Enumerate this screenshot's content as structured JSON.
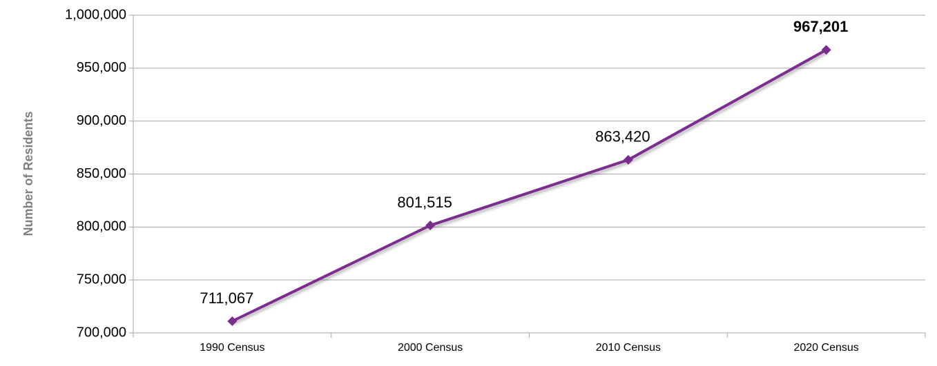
{
  "chart_data": {
    "type": "line",
    "y_axis_label": "Number of Residents",
    "categories": [
      "1990 Census",
      "2000 Census",
      "2010 Census",
      "2020 Census"
    ],
    "series": [
      {
        "name": null,
        "color": "#7b2d8e",
        "values": [
          711067,
          801515,
          863420,
          967201
        ],
        "value_labels": [
          "711,067",
          "801,515",
          "863,420",
          "967,201"
        ],
        "bold_value_labels": [
          false,
          false,
          false,
          true
        ]
      }
    ],
    "ylim": [
      700000,
      1000000
    ],
    "yticks": [
      {
        "value": 700000,
        "label": "700,000"
      },
      {
        "value": 750000,
        "label": "750,000"
      },
      {
        "value": 800000,
        "label": "800,000"
      },
      {
        "value": 850000,
        "label": "850,000"
      },
      {
        "value": 900000,
        "label": "900,000"
      },
      {
        "value": 950000,
        "label": "950,000"
      },
      {
        "value": 1000000,
        "label": "1,000,000"
      }
    ],
    "grid": true
  }
}
